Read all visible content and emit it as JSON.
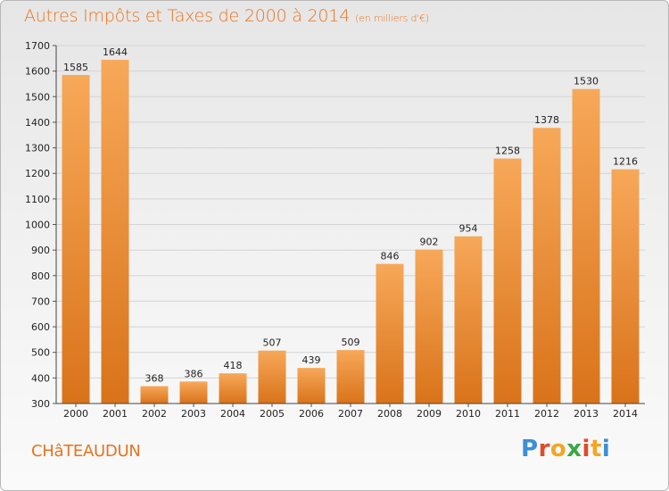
{
  "title": "Autres Impôts et Taxes de 2000 à 2014",
  "title_unit": "(en milliers d'€)",
  "city": "CHâTEAUDUN",
  "logo": {
    "letters": [
      "P",
      "r",
      "o",
      "x",
      "i",
      "t",
      "i"
    ],
    "colors": [
      "#3b8fd6",
      "#e04b2a",
      "#f2a623",
      "#3aa845",
      "#e04b2a",
      "#f2a623",
      "#3b8fd6"
    ]
  },
  "colors": {
    "bar_top": "#f7a859",
    "bar_bottom": "#d9731a",
    "accent": "#e8731f"
  },
  "chart_data": {
    "type": "bar",
    "title": "Autres Impôts et Taxes de 2000 à 2014",
    "xlabel": "",
    "ylabel": "",
    "categories": [
      "2000",
      "2001",
      "2002",
      "2003",
      "2004",
      "2005",
      "2006",
      "2007",
      "2008",
      "2009",
      "2010",
      "2011",
      "2012",
      "2013",
      "2014"
    ],
    "values": [
      1585,
      1644,
      368,
      386,
      418,
      507,
      439,
      509,
      846,
      902,
      954,
      1258,
      1378,
      1530,
      1216
    ],
    "ylim": [
      300,
      1700
    ],
    "yticks": [
      300,
      400,
      500,
      600,
      700,
      800,
      900,
      1000,
      1100,
      1200,
      1300,
      1400,
      1500,
      1600,
      1700
    ],
    "grid": true
  }
}
